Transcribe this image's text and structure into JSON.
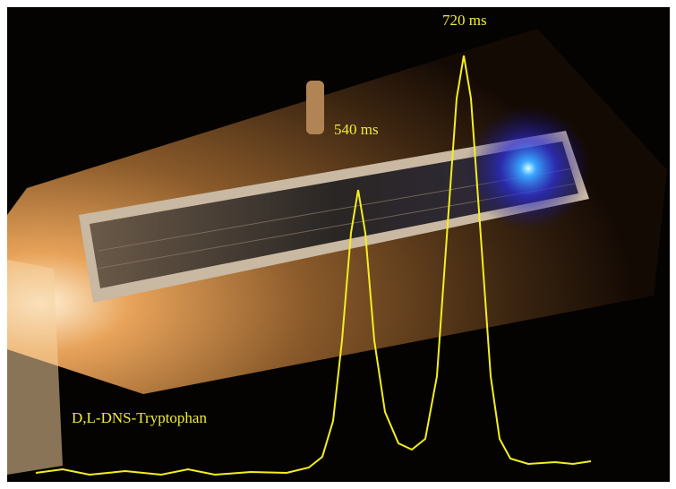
{
  "annotations": {
    "peak_2": "720 ms",
    "peak_1": "540 ms",
    "sample": "D,L-DNS-Tryptophan"
  }
}
